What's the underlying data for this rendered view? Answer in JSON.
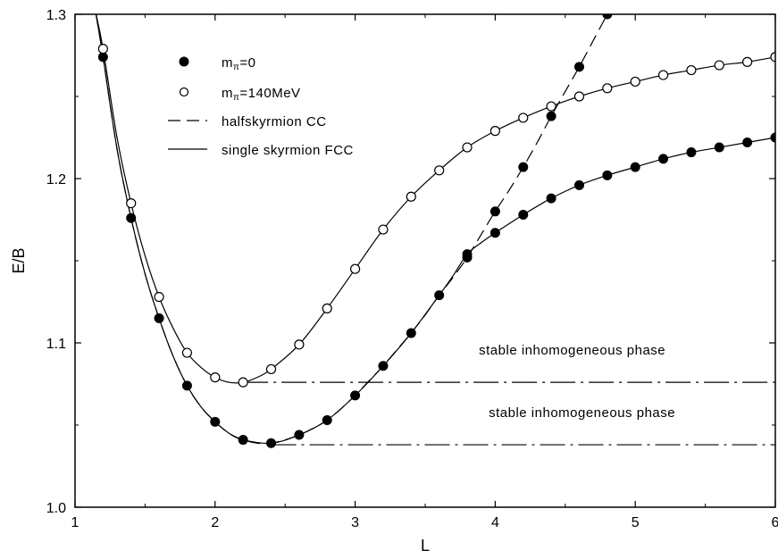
{
  "chart_data": {
    "type": "line",
    "xlabel": "L",
    "ylabel": "E/B",
    "xlim": [
      1,
      6
    ],
    "ylim": [
      1.0,
      1.3
    ],
    "xticks": [
      "1",
      "2",
      "3",
      "4",
      "5",
      "6"
    ],
    "yticks": [
      "1.0",
      "1.1",
      "1.2",
      "1.3"
    ],
    "grid": false,
    "legend_position": "top-left",
    "legend": [
      {
        "label": "mπ=0",
        "marker": "filled-circle"
      },
      {
        "label": "mπ=140MeV",
        "marker": "open-circle"
      },
      {
        "label": "halfskyrmion CC",
        "style": "dashed"
      },
      {
        "label": "single skyrmion FCC",
        "style": "solid"
      }
    ],
    "series": [
      {
        "name": "mπ=0",
        "marker": "filled",
        "x": [
          1.2,
          1.4,
          1.6,
          1.8,
          2.0,
          2.2,
          2.4,
          2.6,
          2.8,
          3.0,
          3.2,
          3.4,
          3.6,
          3.8,
          4.0,
          4.2,
          4.4,
          4.6,
          4.8
        ],
        "y": [
          1.274,
          1.176,
          1.115,
          1.074,
          1.052,
          1.041,
          1.039,
          1.044,
          1.053,
          1.068,
          1.086,
          1.106,
          1.129,
          1.152,
          1.18,
          1.207,
          1.238,
          1.268,
          1.3
        ]
      },
      {
        "name": "mπ=0 FCC",
        "marker": "filled",
        "x": [
          3.8,
          4.0,
          4.2,
          4.4,
          4.6,
          4.8,
          5.0,
          5.2,
          5.4,
          5.6,
          5.8,
          6.0
        ],
        "y": [
          1.154,
          1.167,
          1.178,
          1.188,
          1.196,
          1.202,
          1.207,
          1.212,
          1.216,
          1.219,
          1.222,
          1.225
        ]
      },
      {
        "name": "mπ=140MeV",
        "marker": "open",
        "x": [
          1.2,
          1.4,
          1.6,
          1.8,
          2.0,
          2.2,
          2.4,
          2.6,
          2.8,
          3.0,
          3.2,
          3.4,
          3.6,
          3.8,
          4.0,
          4.2,
          4.4,
          4.6,
          4.8,
          5.0,
          5.2,
          5.4,
          5.6,
          5.8,
          6.0
        ],
        "y": [
          1.279,
          1.185,
          1.128,
          1.094,
          1.079,
          1.076,
          1.084,
          1.099,
          1.121,
          1.145,
          1.169,
          1.189,
          1.205,
          1.219,
          1.229,
          1.237,
          1.244,
          1.25,
          1.255,
          1.259,
          1.263,
          1.266,
          1.269,
          1.271,
          1.274
        ]
      }
    ],
    "curves": [
      {
        "name": "halfskyrmion CC (mπ=0)",
        "style": "dashed",
        "x": [
          1.15,
          1.2,
          1.3,
          1.4,
          1.5,
          1.6,
          1.7,
          1.8,
          1.9,
          2.0,
          2.1,
          2.2,
          2.3,
          2.4,
          2.5,
          2.6,
          2.7,
          2.8,
          2.9,
          3.0,
          3.1,
          3.2,
          3.3,
          3.4,
          3.5,
          3.6,
          3.7,
          3.8,
          3.9,
          4.0,
          4.1,
          4.2,
          4.3,
          4.4,
          4.5,
          4.6,
          4.7,
          4.8
        ],
        "y": [
          1.3,
          1.274,
          1.218,
          1.176,
          1.142,
          1.115,
          1.092,
          1.074,
          1.061,
          1.052,
          1.045,
          1.041,
          1.039,
          1.039,
          1.041,
          1.044,
          1.048,
          1.053,
          1.06,
          1.068,
          1.077,
          1.086,
          1.096,
          1.106,
          1.117,
          1.129,
          1.14,
          1.152,
          1.166,
          1.18,
          1.193,
          1.207,
          1.222,
          1.238,
          1.253,
          1.268,
          1.284,
          1.3
        ]
      },
      {
        "name": "single skyrmion FCC (mπ=0)",
        "style": "solid",
        "x": [
          1.15,
          1.2,
          1.3,
          1.4,
          1.5,
          1.6,
          1.7,
          1.8,
          1.9,
          2.0,
          2.1,
          2.2,
          2.4,
          2.6,
          2.8,
          3.0,
          3.2,
          3.4,
          3.6,
          3.7,
          3.8,
          3.9,
          4.0,
          4.2,
          4.4,
          4.6,
          4.8,
          5.0,
          5.2,
          5.4,
          5.6,
          5.8,
          6.0
        ],
        "y": [
          1.3,
          1.274,
          1.218,
          1.176,
          1.142,
          1.115,
          1.092,
          1.074,
          1.061,
          1.052,
          1.045,
          1.041,
          1.039,
          1.044,
          1.053,
          1.068,
          1.086,
          1.106,
          1.129,
          1.141,
          1.154,
          1.161,
          1.167,
          1.178,
          1.188,
          1.196,
          1.202,
          1.207,
          1.212,
          1.216,
          1.219,
          1.222,
          1.225
        ]
      },
      {
        "name": "single skyrmion FCC (mπ=140MeV)",
        "style": "solid",
        "x": [
          1.15,
          1.2,
          1.3,
          1.4,
          1.5,
          1.6,
          1.7,
          1.8,
          1.9,
          2.0,
          2.1,
          2.2,
          2.3,
          2.4,
          2.6,
          2.8,
          3.0,
          3.2,
          3.4,
          3.6,
          3.8,
          4.0,
          4.2,
          4.4,
          4.6,
          4.8,
          5.0,
          5.2,
          5.4,
          5.6,
          5.8,
          6.0
        ],
        "y": [
          1.3,
          1.279,
          1.225,
          1.185,
          1.153,
          1.128,
          1.109,
          1.094,
          1.085,
          1.079,
          1.076,
          1.076,
          1.079,
          1.084,
          1.099,
          1.121,
          1.145,
          1.169,
          1.189,
          1.205,
          1.219,
          1.229,
          1.237,
          1.244,
          1.25,
          1.255,
          1.259,
          1.263,
          1.266,
          1.269,
          1.271,
          1.274
        ]
      },
      {
        "name": "stable inhomogeneous phase (mπ=140MeV)",
        "style": "dashdot",
        "x": [
          2.2,
          6.0
        ],
        "y": [
          1.076,
          1.076
        ]
      },
      {
        "name": "stable inhomogeneous phase (mπ=0)",
        "style": "dashdot",
        "x": [
          2.4,
          6.0
        ],
        "y": [
          1.038,
          1.038
        ]
      }
    ],
    "annotations": [
      {
        "text": "stable inhomogeneous phase",
        "x": 4.55,
        "y": 1.093
      },
      {
        "text": "stable inhomogeneous phase",
        "x": 4.62,
        "y": 1.055
      }
    ]
  }
}
